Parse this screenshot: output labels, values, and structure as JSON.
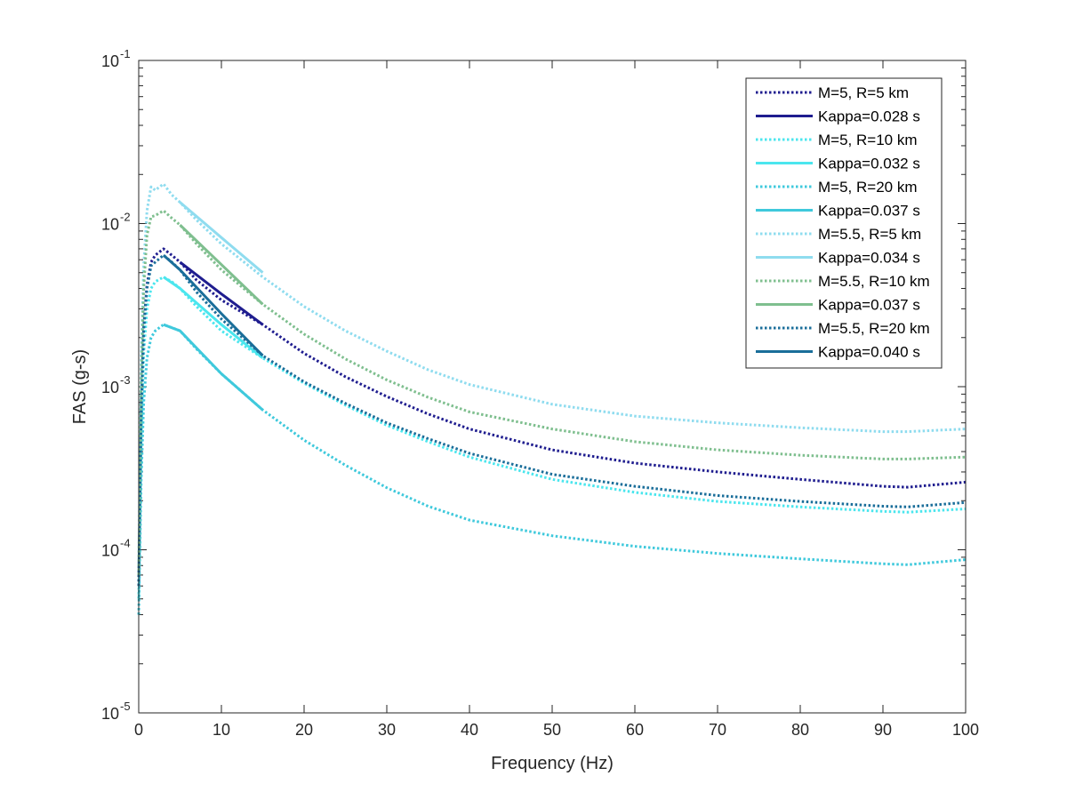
{
  "chart_data": {
    "type": "line",
    "title": "",
    "xlabel": "Frequency (Hz)",
    "ylabel": "FAS (g-s)",
    "xlim": [
      0,
      100
    ],
    "ylim": [
      1e-05,
      0.1
    ],
    "yscale": "log",
    "grid": false,
    "legend_position": "top-right",
    "x_ticks": [
      "0",
      "10",
      "20",
      "30",
      "40",
      "50",
      "60",
      "70",
      "80",
      "90",
      "100"
    ],
    "y_ticks": [
      {
        "base": "10",
        "exp": "-5",
        "value": 1e-05
      },
      {
        "base": "10",
        "exp": "-4",
        "value": 0.0001
      },
      {
        "base": "10",
        "exp": "-3",
        "value": 0.001
      },
      {
        "base": "10",
        "exp": "-2",
        "value": 0.01
      },
      {
        "base": "10",
        "exp": "-1",
        "value": 0.1
      }
    ],
    "series": [
      {
        "name": "M=5, R=5 km",
        "color": "#1f1d8f",
        "style": "dotted",
        "x": [
          0,
          0.3,
          0.6,
          1,
          1.5,
          2,
          3,
          4,
          5,
          7,
          10,
          15,
          20,
          25,
          30,
          35,
          40,
          50,
          60,
          70,
          80,
          90,
          93,
          100
        ],
        "y": [
          6e-05,
          0.0007,
          0.0023,
          0.0042,
          0.0058,
          0.0064,
          0.007,
          0.0064,
          0.0058,
          0.0045,
          0.0034,
          0.0024,
          0.0016,
          0.00115,
          0.00087,
          0.00068,
          0.00055,
          0.00041,
          0.00034,
          0.0003,
          0.00027,
          0.000245,
          0.000242,
          0.00026
        ]
      },
      {
        "name": "Kappa=0.028 s",
        "color": "#1f1d8f",
        "style": "solid",
        "x": [
          5,
          10,
          15
        ],
        "y": [
          0.0058,
          0.0037,
          0.0024
        ]
      },
      {
        "name": "M=5, R=10 km",
        "color": "#4be6ee",
        "style": "dotted",
        "x": [
          0,
          0.3,
          0.6,
          1,
          1.5,
          2,
          3,
          4,
          5,
          7,
          10,
          15,
          20,
          25,
          30,
          35,
          40,
          50,
          60,
          70,
          80,
          90,
          93,
          100
        ],
        "y": [
          5e-05,
          0.0005,
          0.0016,
          0.003,
          0.004,
          0.0044,
          0.0047,
          0.0044,
          0.004,
          0.0031,
          0.0022,
          0.0015,
          0.00105,
          0.00077,
          0.00058,
          0.00046,
          0.00037,
          0.00027,
          0.000225,
          0.000198,
          0.000183,
          0.000172,
          0.00017,
          0.000178
        ]
      },
      {
        "name": "Kappa=0.032 s",
        "color": "#4be6ee",
        "style": "solid",
        "x": [
          3,
          5,
          10,
          15
        ],
        "y": [
          0.0047,
          0.004,
          0.0024,
          0.0015
        ]
      },
      {
        "name": "M=5, R=20 km",
        "color": "#3fc9dc",
        "style": "dotted",
        "x": [
          0,
          0.3,
          0.6,
          1,
          1.5,
          2,
          3,
          4,
          5,
          7,
          10,
          15,
          20,
          25,
          30,
          35,
          40,
          50,
          60,
          70,
          80,
          90,
          93,
          100
        ],
        "y": [
          4e-05,
          0.00027,
          0.0008,
          0.0015,
          0.002,
          0.0022,
          0.0024,
          0.0023,
          0.0022,
          0.0017,
          0.0012,
          0.00072,
          0.00047,
          0.00033,
          0.00024,
          0.000185,
          0.000152,
          0.000122,
          0.000105,
          9.5e-05,
          8.8e-05,
          8.2e-05,
          8.1e-05,
          8.7e-05
        ]
      },
      {
        "name": "Kappa=0.037 s",
        "color": "#3fc9dc",
        "style": "solid",
        "x": [
          3,
          5,
          10,
          15
        ],
        "y": [
          0.0024,
          0.0022,
          0.0012,
          0.00072
        ]
      },
      {
        "name": "M=5.5, R=5 km",
        "color": "#8fdcef",
        "style": "dotted",
        "x": [
          0,
          0.3,
          0.6,
          1,
          1.5,
          2,
          3,
          4,
          5,
          7,
          10,
          15,
          20,
          25,
          30,
          35,
          40,
          50,
          60,
          70,
          80,
          90,
          93,
          100
        ],
        "y": [
          8e-05,
          0.0015,
          0.0055,
          0.012,
          0.0168,
          0.016,
          0.0175,
          0.015,
          0.0135,
          0.0105,
          0.0075,
          0.0047,
          0.0031,
          0.0022,
          0.00165,
          0.00127,
          0.00103,
          0.00078,
          0.00066,
          0.0006,
          0.00056,
          0.00053,
          0.00053,
          0.00055
        ]
      },
      {
        "name": "Kappa=0.034 s",
        "color": "#8fdcef",
        "style": "solid",
        "x": [
          5,
          10,
          15
        ],
        "y": [
          0.0135,
          0.0082,
          0.005
        ]
      },
      {
        "name": "M=5.5, R=10 km",
        "color": "#7fbf8f",
        "style": "dotted",
        "x": [
          0,
          0.3,
          0.6,
          1,
          1.5,
          2,
          3,
          4,
          5,
          7,
          10,
          15,
          20,
          25,
          30,
          35,
          40,
          50,
          60,
          70,
          80,
          90,
          93,
          100
        ],
        "y": [
          7e-05,
          0.0011,
          0.004,
          0.0085,
          0.011,
          0.0112,
          0.012,
          0.0108,
          0.0098,
          0.0075,
          0.0052,
          0.0032,
          0.0021,
          0.00148,
          0.0011,
          0.00086,
          0.0007,
          0.00055,
          0.00046,
          0.00041,
          0.00038,
          0.00036,
          0.00036,
          0.00037
        ]
      },
      {
        "name": "Kappa=0.037 s",
        "color": "#7fbf8f",
        "style": "solid",
        "x": [
          5,
          10,
          15
        ],
        "y": [
          0.0098,
          0.0056,
          0.0032
        ]
      },
      {
        "name": "M=5.5, R=20 km",
        "color": "#1a6e9a",
        "style": "dotted",
        "x": [
          0,
          0.3,
          0.6,
          1,
          1.5,
          2,
          3,
          4,
          5,
          7,
          10,
          15,
          20,
          25,
          30,
          35,
          40,
          50,
          60,
          70,
          80,
          90,
          93,
          100
        ],
        "y": [
          6e-05,
          0.0007,
          0.0022,
          0.004,
          0.0055,
          0.0058,
          0.0064,
          0.0058,
          0.0052,
          0.0038,
          0.0026,
          0.00155,
          0.00107,
          0.00079,
          0.0006,
          0.00048,
          0.00039,
          0.00029,
          0.000245,
          0.000215,
          0.000198,
          0.000185,
          0.000183,
          0.000195
        ]
      },
      {
        "name": "Kappa=0.040 s",
        "color": "#1a6e9a",
        "style": "solid",
        "x": [
          3,
          5,
          10,
          15
        ],
        "y": [
          0.0064,
          0.0052,
          0.0028,
          0.00155
        ]
      }
    ]
  }
}
